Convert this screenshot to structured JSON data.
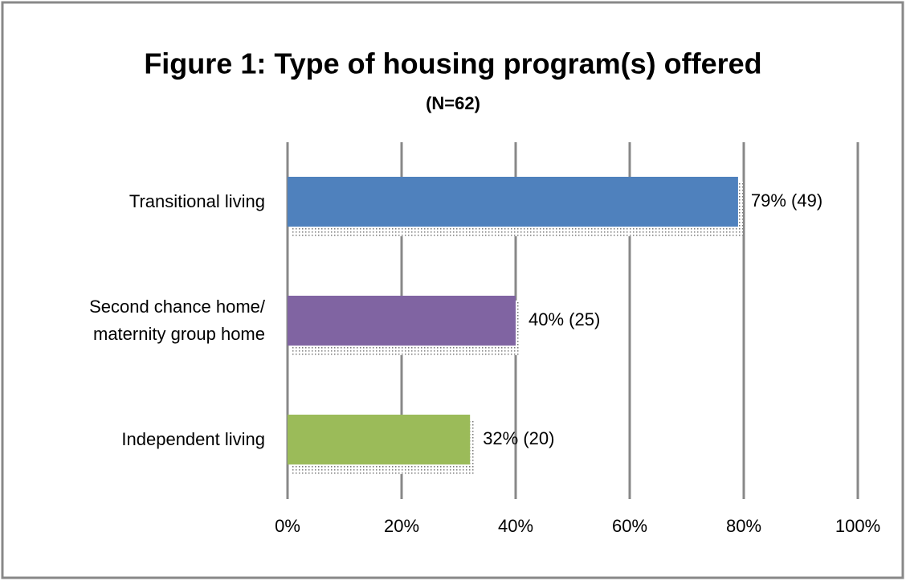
{
  "chart_data": {
    "type": "bar",
    "orientation": "horizontal",
    "title": "Figure 1: Type of housing program(s) offered",
    "subtitle": "(N=62)",
    "categories": [
      "Transitional  living",
      "Second chance home/\nmaternity group home",
      "Independent living"
    ],
    "values": [
      79,
      40,
      32
    ],
    "value_labels": [
      "79% (49)",
      "40% (25)",
      "32% (20)"
    ],
    "colors": [
      "#4f81bd",
      "#8064a2",
      "#9bbb59"
    ],
    "xlim": [
      0,
      100
    ],
    "xticks": [
      {
        "value": 0,
        "label": "0%"
      },
      {
        "value": 20,
        "label": "20%"
      },
      {
        "value": 40,
        "label": "40%"
      },
      {
        "value": 60,
        "label": "60%"
      },
      {
        "value": 80,
        "label": "80%"
      },
      {
        "value": 100,
        "label": "100%"
      }
    ],
    "grid": true
  }
}
